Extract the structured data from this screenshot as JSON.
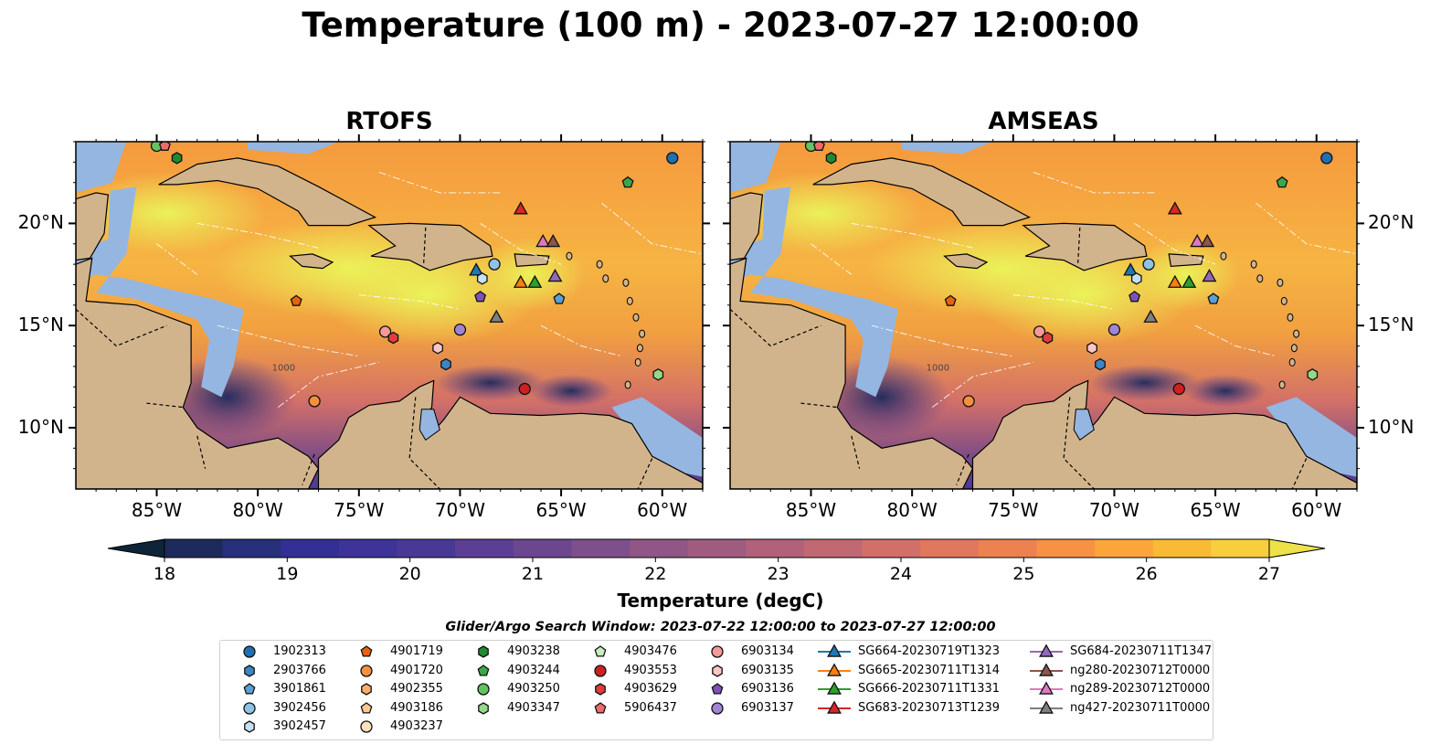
{
  "title": "Temperature (100 m) - 2023-07-27 12:00:00",
  "panels": [
    {
      "title": "RTOFS"
    },
    {
      "title": "AMSEAS"
    }
  ],
  "map": {
    "lon_range": [
      -89,
      -58
    ],
    "lat_range": [
      7,
      24
    ],
    "land_color": "#d2b48c",
    "shelf_color": "#95b6e0",
    "hot_color": "#eaf55a",
    "lat_ticks": [
      {
        "value": 20,
        "label": "20°N"
      },
      {
        "value": 15,
        "label": "15°N"
      },
      {
        "value": 10,
        "label": "10°N"
      }
    ],
    "lon_ticks": [
      {
        "value": -85,
        "label": "85°W"
      },
      {
        "value": -80,
        "label": "80°W"
      },
      {
        "value": -75,
        "label": "75°W"
      },
      {
        "value": -70,
        "label": "70°W"
      },
      {
        "value": -65,
        "label": "65°W"
      },
      {
        "value": -60,
        "label": "60°W"
      }
    ],
    "contour_label": "1000"
  },
  "colorbar": {
    "label": "Temperature (degC)",
    "vmin": 18,
    "vmax": 27,
    "ticks": [
      "18",
      "19",
      "20",
      "21",
      "22",
      "23",
      "24",
      "25",
      "26",
      "27"
    ],
    "colors": [
      "#0e2438",
      "#1d2a5c",
      "#27307a",
      "#332f96",
      "#3d3399",
      "#4a3897",
      "#5c3f94",
      "#6c4790",
      "#7d4f8c",
      "#8f5686",
      "#a05c80",
      "#b1627a",
      "#c26873",
      "#d26f69",
      "#e1775d",
      "#ee8150",
      "#f79143",
      "#fba53a",
      "#fbba36",
      "#f8ce3c",
      "#eee24a"
    ]
  },
  "legend": {
    "title": "Glider/Argo Search Window: 2023-07-22 12:00:00 to 2023-07-27 12:00:00",
    "items": [
      {
        "label": "1902313",
        "marker": "circle",
        "color": "#1f6fb2"
      },
      {
        "label": "2903766",
        "marker": "hexagon",
        "color": "#3d86c6"
      },
      {
        "label": "3901861",
        "marker": "pentagon",
        "color": "#5aa0d6"
      },
      {
        "label": "3902456",
        "marker": "circle",
        "color": "#8fc3e6"
      },
      {
        "label": "3902457",
        "marker": "hexagon",
        "color": "#c6e0f3"
      },
      {
        "label": "4901719",
        "marker": "pentagon",
        "color": "#e8620f"
      },
      {
        "label": "4901720",
        "marker": "circle",
        "color": "#f6903f"
      },
      {
        "label": "4902355",
        "marker": "hexagon",
        "color": "#fbad6b"
      },
      {
        "label": "4903186",
        "marker": "pentagon",
        "color": "#fdc894"
      },
      {
        "label": "4903237",
        "marker": "circle",
        "color": "#fde0bd"
      },
      {
        "label": "4903238",
        "marker": "hexagon",
        "color": "#1e8a32"
      },
      {
        "label": "4903244",
        "marker": "pentagon",
        "color": "#3aa84a"
      },
      {
        "label": "4903250",
        "marker": "circle",
        "color": "#62c45e"
      },
      {
        "label": "4903347",
        "marker": "hexagon",
        "color": "#93d986"
      },
      {
        "label": "4903476",
        "marker": "pentagon",
        "color": "#c8eec0"
      },
      {
        "label": "4903553",
        "marker": "circle",
        "color": "#cf2020"
      },
      {
        "label": "4903629",
        "marker": "hexagon",
        "color": "#e03c3c"
      },
      {
        "label": "5906437",
        "marker": "pentagon",
        "color": "#ee6a6a"
      },
      {
        "label": "6903134",
        "marker": "circle",
        "color": "#f59a9a"
      },
      {
        "label": "6903135",
        "marker": "hexagon",
        "color": "#fcc6c6"
      },
      {
        "label": "6903136",
        "marker": "pentagon",
        "color": "#7c52b8"
      },
      {
        "label": "6903137",
        "marker": "circle",
        "color": "#a184d3"
      },
      {
        "label": "SG664-20230719T1323",
        "marker": "triangle",
        "color": "#1f77b4"
      },
      {
        "label": "SG665-20230711T1314",
        "marker": "triangle",
        "color": "#ff7f0e"
      },
      {
        "label": "SG666-20230711T1331",
        "marker": "triangle",
        "color": "#2ca02c"
      },
      {
        "label": "SG683-20230713T1239",
        "marker": "triangle",
        "color": "#d62728"
      },
      {
        "label": "SG684-20230711T1347",
        "marker": "triangle",
        "color": "#9467bd"
      },
      {
        "label": "ng280-20230712T0000",
        "marker": "triangle",
        "color": "#8c564b"
      },
      {
        "label": "ng289-20230712T0000",
        "marker": "triangle",
        "color": "#e377c2"
      },
      {
        "label": "ng427-20230711T0000",
        "marker": "triangle",
        "color": "#7f7f7f"
      }
    ]
  },
  "platforms": [
    {
      "id": "1902313",
      "lon": -59.5,
      "lat": 23.2
    },
    {
      "id": "4903238",
      "lon": -84.0,
      "lat": 23.2
    },
    {
      "id": "4903244",
      "lon": -61.7,
      "lat": 22.0
    },
    {
      "id": "4903250",
      "lon": -85.0,
      "lat": 23.8
    },
    {
      "id": "5906437",
      "lon": -84.6,
      "lat": 23.8
    },
    {
      "id": "SG683-20230713T1239",
      "lon": -67.0,
      "lat": 20.7
    },
    {
      "id": "ng289-20230712T0000",
      "lon": -65.9,
      "lat": 19.1
    },
    {
      "id": "ng280-20230712T0000",
      "lon": -65.4,
      "lat": 19.1
    },
    {
      "id": "3902456",
      "lon": -68.3,
      "lat": 18.0
    },
    {
      "id": "SG664-20230719T1323",
      "lon": -69.2,
      "lat": 17.7
    },
    {
      "id": "3902457",
      "lon": -68.9,
      "lat": 17.3
    },
    {
      "id": "SG684-20230711T1347",
      "lon": -65.3,
      "lat": 17.4
    },
    {
      "id": "SG665-20230711T1314",
      "lon": -67.0,
      "lat": 17.1
    },
    {
      "id": "SG666-20230711T1331",
      "lon": -66.3,
      "lat": 17.1
    },
    {
      "id": "3901861",
      "lon": -65.1,
      "lat": 16.3
    },
    {
      "id": "6903136",
      "lon": -69.0,
      "lat": 16.4
    },
    {
      "id": "4901719",
      "lon": -78.1,
      "lat": 16.2
    },
    {
      "id": "ng427-20230711T0000",
      "lon": -68.2,
      "lat": 15.4
    },
    {
      "id": "6903137",
      "lon": -70.0,
      "lat": 14.8
    },
    {
      "id": "6903134",
      "lon": -73.7,
      "lat": 14.7
    },
    {
      "id": "4903629",
      "lon": -73.3,
      "lat": 14.4
    },
    {
      "id": "6903135",
      "lon": -71.1,
      "lat": 13.9
    },
    {
      "id": "2903766",
      "lon": -70.7,
      "lat": 13.1
    },
    {
      "id": "4903347",
      "lon": -60.2,
      "lat": 12.6
    },
    {
      "id": "4903553",
      "lon": -66.8,
      "lat": 11.9
    },
    {
      "id": "4901720",
      "lon": -77.2,
      "lat": 11.3
    }
  ]
}
